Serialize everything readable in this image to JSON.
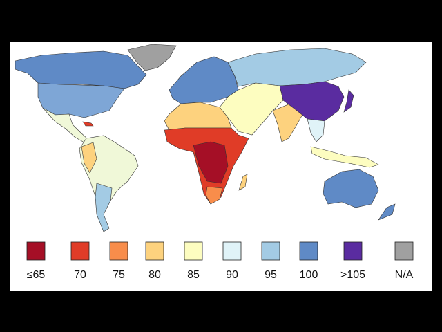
{
  "legend": {
    "items": [
      {
        "label": "≤65",
        "color": "#a50f26"
      },
      {
        "label": "70",
        "color": "#e03c27"
      },
      {
        "label": "75",
        "color": "#f88d4b"
      },
      {
        "label": "80",
        "color": "#fdd27e"
      },
      {
        "label": "85",
        "color": "#fdfdc0"
      },
      {
        "label": "90",
        "color": "#e0f3f8"
      },
      {
        "label": "95",
        "color": "#a3cbe4"
      },
      {
        "label": "100",
        "color": "#5f8ac6"
      },
      {
        "label": ">105",
        "color": "#5a2ca0"
      },
      {
        "label": "N/A",
        "color": "#a0a0a0"
      }
    ]
  }
}
